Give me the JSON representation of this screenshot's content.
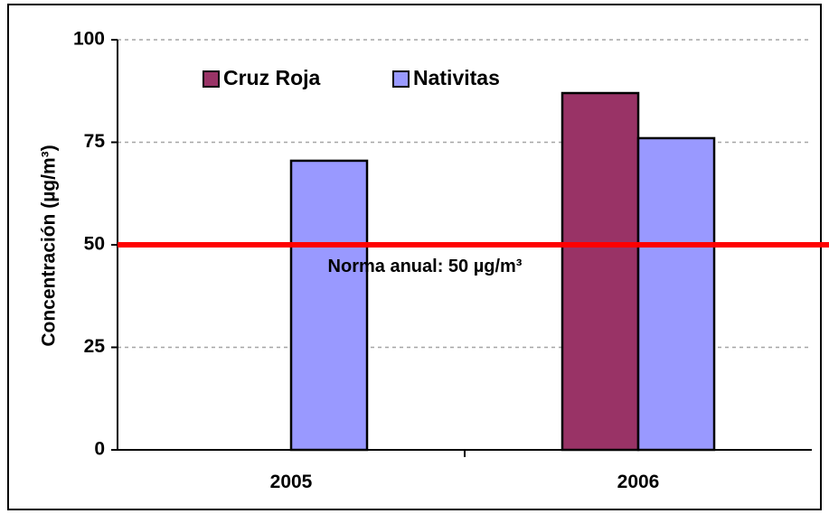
{
  "chart_data": {
    "type": "bar",
    "categories": [
      "2005",
      "2006"
    ],
    "series": [
      {
        "name": "Cruz Roja",
        "values": [
          null,
          87
        ],
        "color": "#993366"
      },
      {
        "name": "Nativitas",
        "values": [
          70.5,
          76
        ],
        "color": "#9999ff"
      }
    ],
    "ylabel": "Concentración (µg/m³)",
    "xlabel": "",
    "ylim": [
      0,
      100
    ],
    "yticks": [
      0,
      25,
      50,
      75,
      100
    ],
    "grid": true,
    "reference_line": {
      "value": 50,
      "label": "Norma anual: 50 µg/m³",
      "color": "#ff0000"
    },
    "legend_position": "top-left"
  }
}
